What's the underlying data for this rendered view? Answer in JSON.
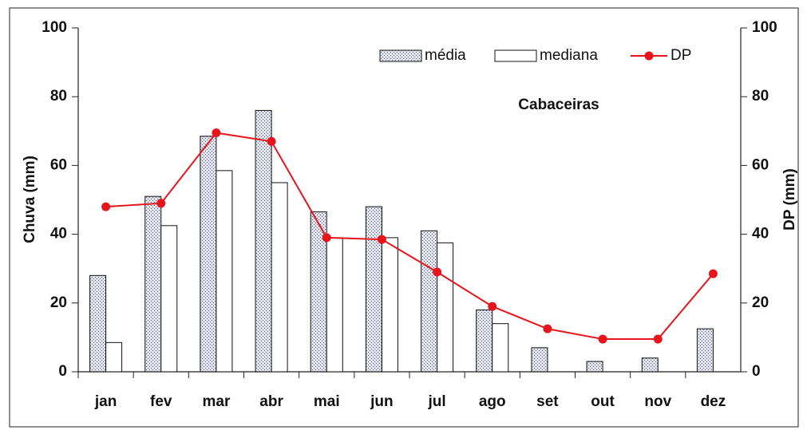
{
  "chart_data": {
    "type": "bar-line",
    "annotation": "Cabaceiras",
    "y_label": "Chuva (mm)",
    "y2_label": "DP (mm)",
    "categories": [
      "jan",
      "fev",
      "mar",
      "abr",
      "mai",
      "jun",
      "jul",
      "ago",
      "set",
      "out",
      "nov",
      "dez"
    ],
    "series": [
      {
        "name": "média",
        "type": "bar",
        "color": "#dfe4ee",
        "values": [
          28,
          51,
          68.5,
          76,
          46.5,
          48,
          41,
          18,
          7,
          3,
          4,
          12.5
        ]
      },
      {
        "name": "mediana",
        "type": "bar",
        "color": "#ffffff",
        "values": [
          8.5,
          42.5,
          58.5,
          55,
          39,
          39,
          37.5,
          14,
          0,
          0,
          0,
          0
        ]
      },
      {
        "name": "DP",
        "type": "line",
        "axis": "y2",
        "color": "#e8141c",
        "values": [
          48,
          49,
          69.5,
          67,
          39,
          38.5,
          29,
          19,
          12.5,
          9.5,
          9.5,
          28.5
        ]
      }
    ],
    "ylim": [
      0,
      100
    ],
    "yticks": [
      0,
      20,
      40,
      60,
      80,
      100
    ],
    "y2lim": [
      0,
      100
    ],
    "y2ticks": [
      0,
      20,
      40,
      60,
      80,
      100
    ],
    "grid": false
  }
}
